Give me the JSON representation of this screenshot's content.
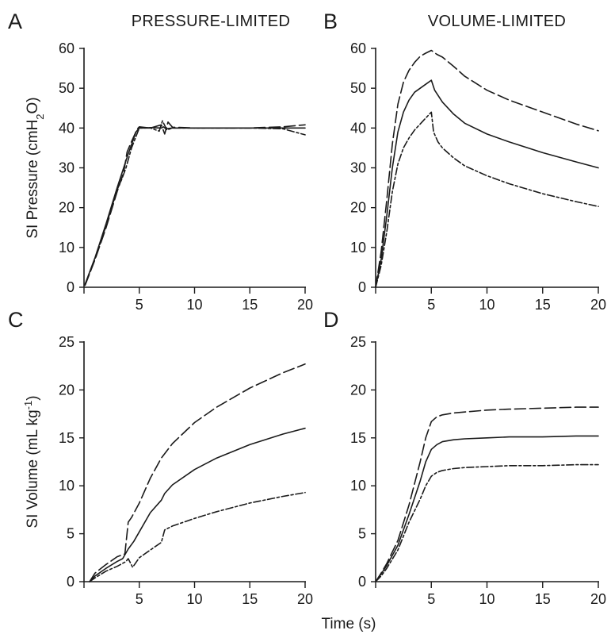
{
  "figure": {
    "xlabel": "Time (s)"
  },
  "chart_data": [
    {
      "type": "line",
      "panel": "A",
      "title": "PRESSURE-LIMITED",
      "ylabel": "SI Pressure (cmH",
      "ylabel_sub": "2",
      "ylabel_end": "O)",
      "xlim": [
        0,
        20
      ],
      "ylim": [
        0,
        60
      ],
      "xticks": [
        5,
        10,
        15,
        20
      ],
      "yticks": [
        0,
        10,
        20,
        30,
        40,
        50,
        60
      ],
      "series": [
        {
          "style": "solid",
          "x": [
            0.1,
            1,
            2,
            3,
            4,
            4.7,
            5,
            5.5,
            6,
            7,
            7.2,
            7.4,
            8,
            10,
            15,
            18,
            20
          ],
          "y": [
            0.8,
            7.5,
            16,
            25,
            33.5,
            39,
            40,
            40,
            40.1,
            40,
            40.3,
            39.8,
            40,
            40,
            40,
            40,
            40
          ]
        },
        {
          "style": "dashed",
          "x": [
            0.1,
            1,
            2,
            3,
            3.6,
            3.9,
            4.2,
            4.8,
            5,
            6,
            7,
            7.3,
            7.6,
            8,
            10,
            15,
            18,
            20
          ],
          "y": [
            0.5,
            7,
            15,
            24,
            29,
            34,
            36,
            39.7,
            40.3,
            40,
            40.8,
            38.5,
            41.5,
            40.2,
            40,
            40,
            40.3,
            40.8
          ]
        },
        {
          "style": "dashed",
          "x": [
            0.1,
            1,
            2,
            3,
            3.4,
            3.8,
            4.3,
            5,
            6,
            6.8,
            7.1,
            7.5,
            8,
            10,
            15,
            18,
            20
          ],
          "y": [
            0.6,
            7.2,
            15.5,
            24.5,
            27,
            30,
            35,
            40,
            40,
            39.2,
            41.8,
            39.5,
            40,
            40,
            40,
            39.8,
            38.3
          ]
        }
      ]
    },
    {
      "type": "line",
      "panel": "B",
      "title": "VOLUME-LIMITED",
      "xlim": [
        0,
        20
      ],
      "ylim": [
        0,
        60
      ],
      "xticks": [
        5,
        10,
        15,
        20
      ],
      "yticks": [
        0,
        10,
        20,
        30,
        40,
        50,
        60
      ],
      "series": [
        {
          "style": "solid",
          "x": [
            0,
            0.5,
            1,
            1.5,
            2,
            2.5,
            3,
            3.5,
            4,
            4.5,
            5,
            5.3,
            6,
            7,
            8,
            10,
            12,
            15,
            18,
            20
          ],
          "y": [
            0,
            7,
            18,
            30,
            39,
            44,
            47,
            49,
            50,
            51,
            52,
            49.5,
            46.5,
            43.5,
            41.2,
            38.5,
            36.5,
            33.8,
            31.5,
            30
          ]
        },
        {
          "style": "dashed",
          "x": [
            0,
            0.5,
            1,
            1.5,
            2,
            2.5,
            3,
            3.5,
            4,
            4.5,
            5,
            5.5,
            6,
            7,
            8,
            10,
            12,
            15,
            18,
            20
          ],
          "y": [
            0,
            9,
            22,
            36,
            46,
            51.5,
            54.5,
            56.5,
            58,
            58.8,
            59.5,
            58.5,
            57.8,
            55.5,
            53,
            49.5,
            47,
            44,
            41,
            39.3
          ]
        },
        {
          "style": "dashed",
          "x": [
            0,
            0.5,
            1,
            1.5,
            2,
            2.5,
            3,
            3.5,
            4,
            4.5,
            5,
            5.2,
            5.6,
            6,
            7,
            8,
            10,
            12,
            15,
            18,
            20
          ],
          "y": [
            0,
            5.5,
            14,
            24,
            31,
            35,
            37.5,
            39.5,
            41,
            42.5,
            44,
            39,
            36.5,
            35,
            32.5,
            30.5,
            28,
            26,
            23.5,
            21.5,
            20.3
          ]
        }
      ]
    },
    {
      "type": "line",
      "panel": "C",
      "ylabel": "SI Volume (mL kg",
      "ylabel_sup": "-1",
      "ylabel_end": ")",
      "xlim": [
        0,
        20
      ],
      "ylim": [
        0,
        25
      ],
      "xticks": [
        5,
        10,
        15,
        20
      ],
      "yticks": [
        0,
        5,
        10,
        15,
        20,
        25
      ],
      "series": [
        {
          "style": "solid",
          "x": [
            0.5,
            1,
            2,
            3,
            3.5,
            4,
            4.5,
            5,
            6,
            7,
            7.3,
            8,
            10,
            12,
            15,
            18,
            20
          ],
          "y": [
            0,
            0.6,
            1.4,
            2.1,
            2.4,
            3.4,
            4.2,
            5.2,
            7.2,
            8.5,
            9.2,
            10.1,
            11.7,
            12.9,
            14.3,
            15.4,
            16
          ]
        },
        {
          "style": "dashed",
          "x": [
            0.5,
            1,
            2,
            3,
            3.7,
            4,
            4.3,
            5,
            6,
            7,
            8,
            10,
            12,
            15,
            18,
            20
          ],
          "y": [
            0,
            0.9,
            1.8,
            2.6,
            2.9,
            6.2,
            6.7,
            8.2,
            10.8,
            12.9,
            14.4,
            16.6,
            18.2,
            20.2,
            21.8,
            22.7
          ]
        },
        {
          "style": "dashed",
          "x": [
            0.5,
            1,
            2,
            3,
            3.8,
            4,
            4.4,
            5,
            6,
            7,
            7.3,
            8,
            10,
            12,
            15,
            18,
            20
          ],
          "y": [
            0,
            0.4,
            1.1,
            1.6,
            2.1,
            2.4,
            1.5,
            2.5,
            3.3,
            4.1,
            5.4,
            5.8,
            6.6,
            7.3,
            8.2,
            8.9,
            9.3
          ]
        }
      ]
    },
    {
      "type": "line",
      "panel": "D",
      "xlim": [
        0,
        20
      ],
      "ylim": [
        0,
        25
      ],
      "xticks": [
        5,
        10,
        15,
        20
      ],
      "yticks": [
        0,
        5,
        10,
        15,
        20,
        25
      ],
      "series": [
        {
          "style": "solid",
          "x": [
            0,
            0.5,
            1,
            2,
            3,
            4,
            4.5,
            5,
            5.5,
            6,
            7,
            8,
            10,
            12,
            15,
            18,
            20
          ],
          "y": [
            0,
            0.8,
            1.7,
            3.8,
            7,
            10.5,
            12.5,
            13.8,
            14.3,
            14.6,
            14.8,
            14.9,
            15,
            15.1,
            15.1,
            15.2,
            15.2
          ]
        },
        {
          "style": "dashed",
          "x": [
            0,
            0.5,
            1,
            2,
            3,
            4,
            4.5,
            5,
            5.5,
            6,
            7,
            8,
            10,
            12,
            15,
            18,
            20
          ],
          "y": [
            0,
            0.9,
            1.9,
            4.3,
            8,
            12.5,
            15,
            16.7,
            17.2,
            17.4,
            17.6,
            17.7,
            17.9,
            18,
            18.1,
            18.2,
            18.2
          ]
        },
        {
          "style": "dashed",
          "x": [
            0,
            0.5,
            1,
            2,
            3,
            4,
            4.5,
            5,
            5.5,
            6,
            7,
            8,
            10,
            12,
            15,
            18,
            20
          ],
          "y": [
            0,
            0.6,
            1.4,
            3.3,
            6.2,
            8.6,
            10,
            11,
            11.4,
            11.6,
            11.8,
            11.9,
            12,
            12.1,
            12.1,
            12.2,
            12.2
          ]
        }
      ]
    }
  ]
}
